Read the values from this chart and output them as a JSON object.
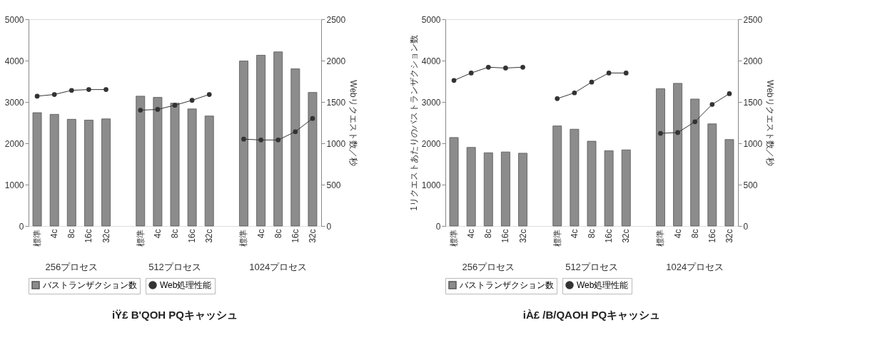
{
  "chart_data": [
    {
      "type": "bar",
      "categories": [
        "標準",
        "4c",
        "8c",
        "16c",
        "32c",
        null,
        "標準",
        "4c",
        "8c",
        "16c",
        "32c",
        null,
        "標準",
        "4c",
        "8c",
        "16c",
        "32c"
      ],
      "y2label": "Webリクエスト数／秒",
      "series": [
        {
          "name": "バストランザクション数",
          "color": "#8c8c8c",
          "values": [
            2740,
            2700,
            2580,
            2560,
            2590,
            null,
            3140,
            3110,
            2970,
            2830,
            2660,
            null,
            3990,
            4130,
            4210,
            3800,
            3230
          ]
        },
        {
          "name": "Web処理性能",
          "type": "line",
          "axis": "y2",
          "color": "#333333",
          "values": [
            1570,
            1590,
            1640,
            1650,
            1650,
            null,
            1400,
            1410,
            1460,
            1520,
            1590,
            null,
            1050,
            1040,
            1040,
            1140,
            1300
          ]
        }
      ],
      "ylim": [
        0,
        5000
      ],
      "yticks": [
        0,
        1000,
        2000,
        3000,
        4000,
        5000
      ],
      "y2lim": [
        0,
        2500
      ],
      "y2ticks": [
        0,
        500,
        1000,
        1500,
        2000,
        2500
      ],
      "grid": false,
      "legend": "bottom",
      "marker": "circle",
      "annotations": [
        "256プロセス",
        "512プロセス",
        "1024プロセス",
        "iŸ£ B'QOH PQキャッシュ"
      ]
    },
    {
      "type": "bar",
      "categories": [
        "標準",
        "4c",
        "8c",
        "16c",
        "32c",
        null,
        "標準",
        "4c",
        "8c",
        "16c",
        "32c",
        null,
        "標準",
        "4c",
        "8c",
        "16c",
        "32c"
      ],
      "ylabel": "1リクエストあたりのバストランザクション数",
      "y2label": "Webリクエスト数／秒",
      "series": [
        {
          "name": "バストランザクション数",
          "color": "#8c8c8c",
          "values": [
            2140,
            1900,
            1770,
            1790,
            1760,
            null,
            2420,
            2340,
            2050,
            1820,
            1840,
            null,
            3320,
            3450,
            3070,
            2470,
            2090
          ]
        },
        {
          "name": "Web処理性能",
          "type": "line",
          "axis": "y2",
          "color": "#333333",
          "values": [
            1760,
            1850,
            1920,
            1910,
            1920,
            null,
            1540,
            1610,
            1740,
            1850,
            1850,
            null,
            1120,
            1130,
            1260,
            1470,
            1600
          ]
        }
      ],
      "ylim": [
        0,
        5000
      ],
      "yticks": [
        0,
        1000,
        2000,
        3000,
        4000,
        5000
      ],
      "y2lim": [
        0,
        2500
      ],
      "y2ticks": [
        0,
        500,
        1000,
        1500,
        2000,
        2500
      ],
      "grid": false,
      "legend": "bottom",
      "marker": "circle",
      "annotations": [
        "256プロセス",
        "512プロセス",
        "1024プロセス",
        "iÀ£ /B/QAOH PQキャッシュ"
      ]
    }
  ]
}
